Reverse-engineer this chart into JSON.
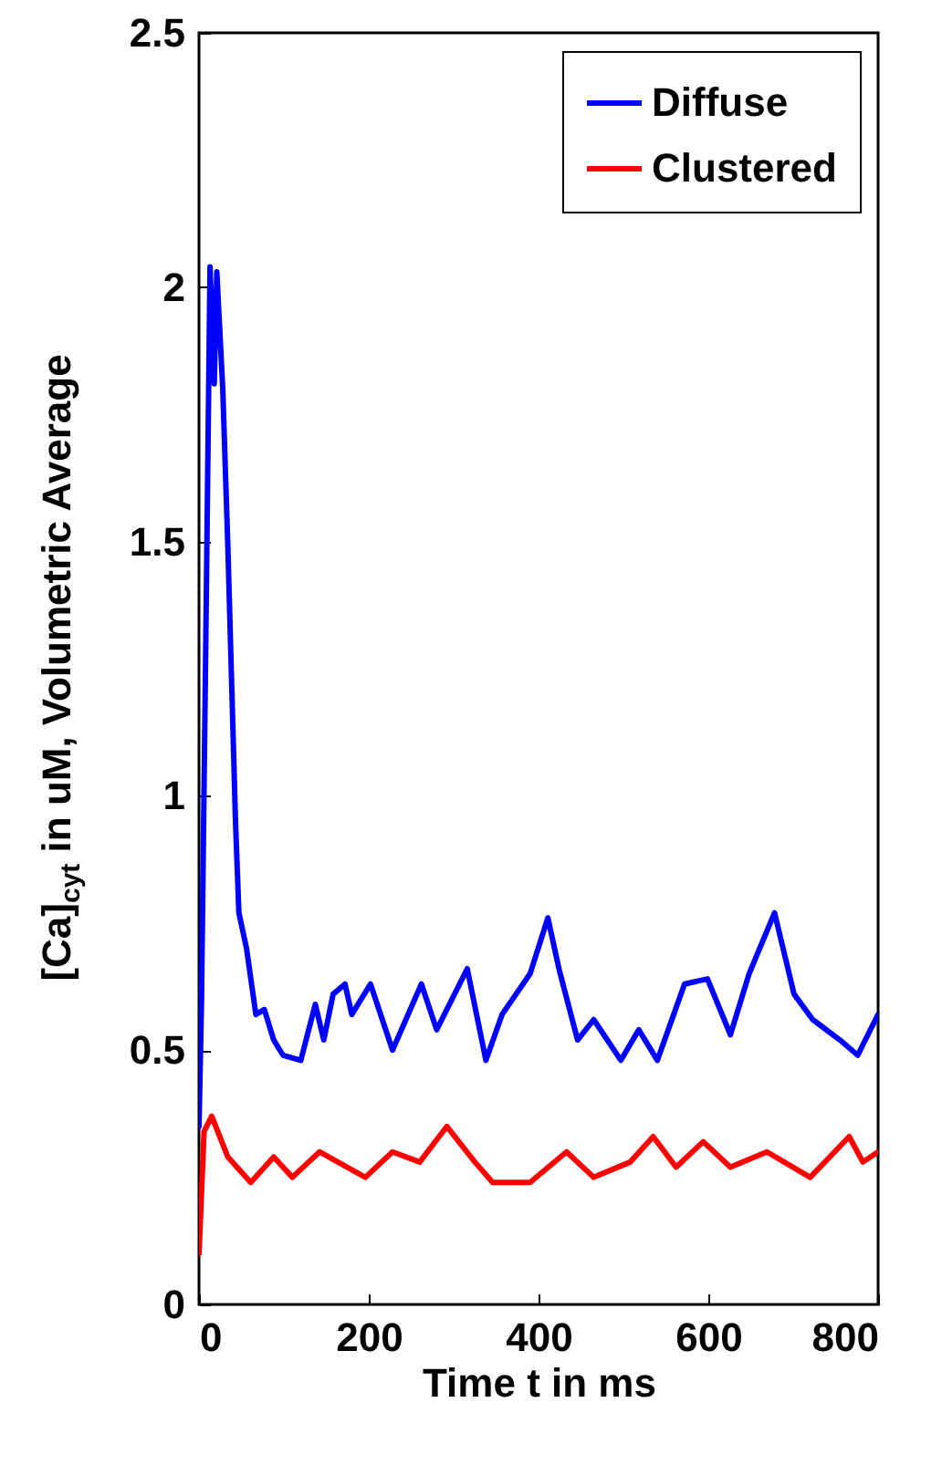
{
  "chart_data": {
    "type": "line",
    "xlabel": "Time t in ms",
    "ylabel": "[Ca]$_{cyt}$ in uM, Volumetric Average",
    "xlim": [
      0,
      800
    ],
    "xticks": [
      0,
      200,
      400,
      600,
      800
    ],
    "ylim": [
      0,
      2.5
    ],
    "yticks": [
      0,
      0.5,
      1,
      1.5,
      2,
      2.5
    ],
    "grid": false,
    "legend": "top right",
    "line_style": "solid",
    "marker": "none",
    "series": [
      {
        "name": "Diffuse",
        "color": "#0000ff",
        "x": [
          0,
          3,
          8,
          13,
          18,
          21,
          28,
          34,
          43,
          47,
          56,
          67,
          77,
          88,
          99,
          120,
          137,
          147,
          158,
          172,
          180,
          202,
          228,
          262,
          280,
          316,
          338,
          357,
          390,
          411,
          424,
          446,
          465,
          497,
          518,
          540,
          572,
          599,
          626,
          648,
          678,
          701,
          723,
          755,
          776,
          800
        ],
        "values": [
          0.35,
          0.6,
          1.3,
          2.04,
          1.81,
          2.03,
          1.8,
          1.49,
          0.95,
          0.77,
          0.7,
          0.57,
          0.58,
          0.52,
          0.49,
          0.48,
          0.59,
          0.52,
          0.61,
          0.63,
          0.57,
          0.63,
          0.5,
          0.63,
          0.54,
          0.66,
          0.48,
          0.57,
          0.65,
          0.76,
          0.66,
          0.52,
          0.56,
          0.48,
          0.54,
          0.48,
          0.63,
          0.64,
          0.53,
          0.65,
          0.77,
          0.61,
          0.56,
          0.52,
          0.49,
          0.57
        ]
      },
      {
        "name": "Clustered",
        "color": "#ff0000",
        "x": [
          0,
          6,
          15,
          34,
          61,
          88,
          110,
          142,
          196,
          228,
          260,
          292,
          325,
          346,
          390,
          433,
          465,
          508,
          535,
          562,
          594,
          626,
          669,
          720,
          766,
          782,
          800
        ],
        "values": [
          0.1,
          0.34,
          0.37,
          0.29,
          0.24,
          0.29,
          0.25,
          0.3,
          0.25,
          0.3,
          0.28,
          0.35,
          0.28,
          0.24,
          0.24,
          0.3,
          0.25,
          0.28,
          0.33,
          0.27,
          0.32,
          0.27,
          0.3,
          0.25,
          0.33,
          0.28,
          0.3
        ]
      }
    ]
  }
}
